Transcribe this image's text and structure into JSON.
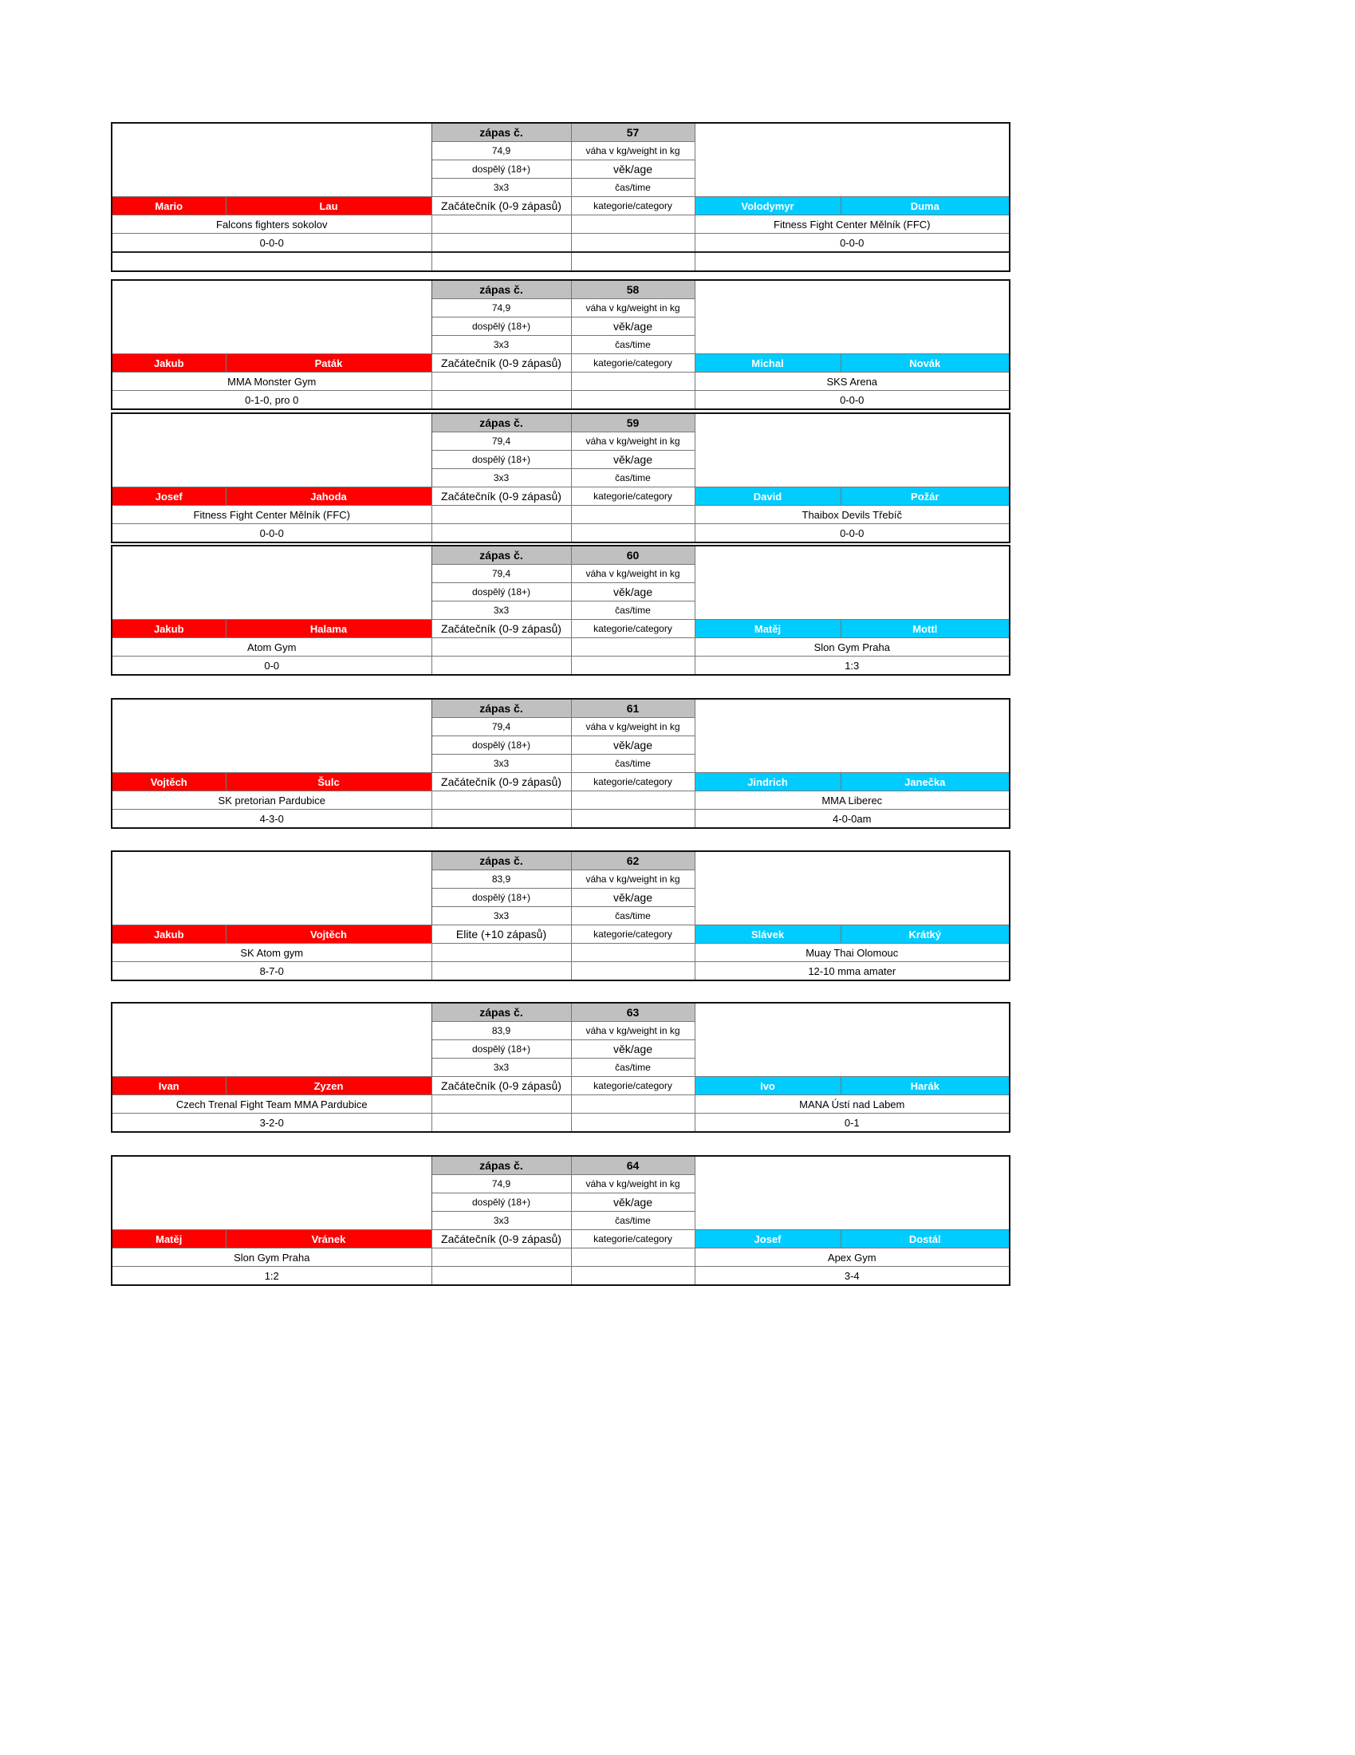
{
  "labels": {
    "bout_no": "zápas č.",
    "weight": "váha v kg/weight in kg",
    "age": "věk/age",
    "time": "čas/time",
    "category": "kategorie/category"
  },
  "colors": {
    "red_corner": "#ff0000",
    "blue_corner": "#00ccff",
    "header": "#c0c0c0"
  },
  "bouts": [
    {
      "no": "57",
      "weight": "74,9",
      "age": "dospělý (18+)",
      "time": "3x3",
      "category": "Začátečník (0-9 zápasů)",
      "red": {
        "first": "Mario",
        "last": "Lau",
        "club": "Falcons fighters sokolov",
        "record": "0-0-0"
      },
      "blue": {
        "first": "Volodymyr",
        "last": "Duma",
        "club": "Fitness Fight Center Mělník (FFC)",
        "record": "0-0-0"
      }
    },
    {
      "no": "58",
      "weight": "74,9",
      "age": "dospělý (18+)",
      "time": "3x3",
      "category": "Začátečník (0-9 zápasů)",
      "red": {
        "first": "Jakub",
        "last": "Paták",
        "club": "MMA Monster Gym",
        "record": "0-1-0, pro 0"
      },
      "blue": {
        "first": "Michal",
        "last": "Novák",
        "club": "SKS Arena",
        "record": "0-0-0"
      }
    },
    {
      "no": "59",
      "weight": "79,4",
      "age": "dospělý (18+)",
      "time": "3x3",
      "category": "Začátečník (0-9 zápasů)",
      "red": {
        "first": "Josef",
        "last": "Jahoda",
        "club": "Fitness Fight Center Mělník (FFC)",
        "record": "0-0-0"
      },
      "blue": {
        "first": "David",
        "last": "Požár",
        "club": "Thaibox Devils Třebíč",
        "record": "0-0-0"
      }
    },
    {
      "no": "60",
      "weight": "79,4",
      "age": "dospělý (18+)",
      "time": "3x3",
      "category": "Začátečník (0-9 zápasů)",
      "red": {
        "first": "Jakub",
        "last": "Halama",
        "club": "Atom Gym",
        "record": "0-0"
      },
      "blue": {
        "first": "Matěj",
        "last": "Mottl",
        "club": "Slon Gym Praha",
        "record": "1:3"
      }
    },
    {
      "no": "61",
      "weight": "79,4",
      "age": "dospělý (18+)",
      "time": "3x3",
      "category": "Začátečník (0-9 zápasů)",
      "red": {
        "first": "Vojtěch",
        "last": "Šulc",
        "club": "SK pretorian Pardubice",
        "record": "4-3-0"
      },
      "blue": {
        "first": "Jindrich",
        "last": "Janečka",
        "club": "MMA Liberec",
        "record": "4-0-0am"
      }
    },
    {
      "no": "62",
      "weight": "83,9",
      "age": "dospělý (18+)",
      "time": "3x3",
      "category": "Elite (+10 zápasů)",
      "red": {
        "first": "Jakub",
        "last": "Vojtěch",
        "club": "SK Atom gym",
        "record": "8-7-0"
      },
      "blue": {
        "first": "Slávek",
        "last": "Krátký",
        "club": "Muay Thai Olomouc",
        "record": "12-10 mma amater"
      }
    },
    {
      "no": "63",
      "weight": "83,9",
      "age": "dospělý (18+)",
      "time": "3x3",
      "category": "Začátečník (0-9 zápasů)",
      "red": {
        "first": "Ivan",
        "last": "Zyzen",
        "club": "Czech Trenal Fight Team MMA Pardubice",
        "record": "3-2-0"
      },
      "blue": {
        "first": "Ivo",
        "last": "Harák",
        "club": "MANA Ústí nad Labem",
        "record": "0-1"
      }
    },
    {
      "no": "64",
      "weight": "74,9",
      "age": "dospělý (18+)",
      "time": "3x3",
      "category": "Začátečník (0-9 zápasů)",
      "red": {
        "first": "Matěj",
        "last": "Vránek",
        "club": "Slon Gym Praha",
        "record": "1:2"
      },
      "blue": {
        "first": "Josef",
        "last": "Dostál",
        "club": "Apex Gym",
        "record": "3-4"
      }
    }
  ]
}
